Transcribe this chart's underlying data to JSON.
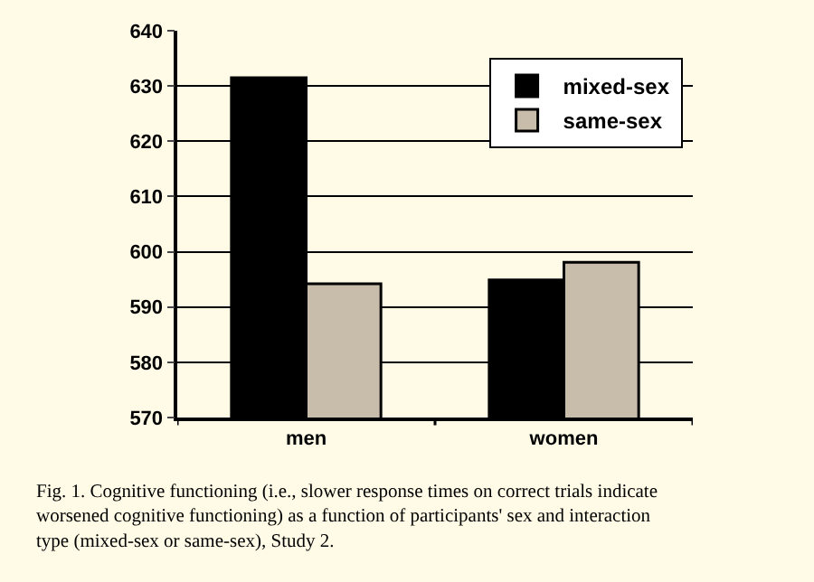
{
  "chart_data": {
    "type": "bar",
    "categories": [
      "men",
      "women"
    ],
    "series": [
      {
        "name": "mixed-sex",
        "color": "#000000",
        "values": [
          631.5,
          594.9
        ]
      },
      {
        "name": "same-sex",
        "color": "#c8bcaa",
        "values": [
          594.2,
          598.1
        ]
      }
    ],
    "ylim": [
      570,
      640
    ],
    "yticks": [
      570,
      580,
      590,
      600,
      610,
      620,
      630,
      640
    ],
    "grid": "y",
    "legend": "top right",
    "annotations": [
      "Fig. 1. Cognitive functioning (i.e., slower response times on correct trials indicate worsened cognitive functioning) as a function of participants' sex and interaction type (mixed-sex or same-sex), Study 2."
    ]
  }
}
